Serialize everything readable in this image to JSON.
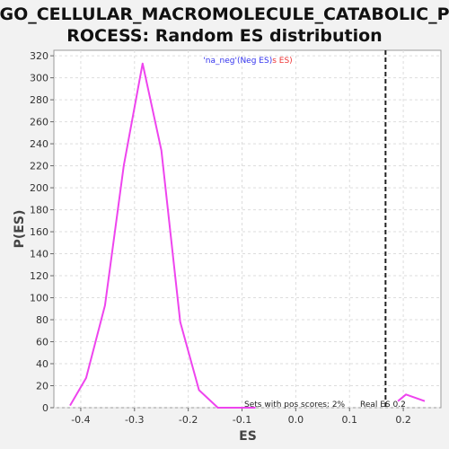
{
  "chart_data": {
    "type": "line",
    "title_lines": [
      "GO_CELLULAR_MACROMOLECULE_CATABOLIC_P",
      "ROCESS: Random ES distribution"
    ],
    "xlabel": "ES",
    "ylabel": "P(ES)",
    "xlim": [
      -0.45,
      0.27
    ],
    "ylim": [
      0,
      325
    ],
    "xticks": [
      -0.4,
      -0.3,
      -0.2,
      -0.1,
      0.0,
      0.1,
      0.2
    ],
    "xtick_labels": [
      "-0.4",
      "-0.3",
      "-0.2",
      "-0.1",
      "0.0",
      "0.1",
      "0.2"
    ],
    "yticks": [
      0,
      20,
      40,
      60,
      80,
      100,
      120,
      140,
      160,
      180,
      200,
      220,
      240,
      260,
      280,
      300,
      320
    ],
    "ytick_labels": [
      "0",
      "20",
      "40",
      "60",
      "80",
      "100",
      "120",
      "140",
      "160",
      "180",
      "200",
      "220",
      "240",
      "260",
      "280",
      "300",
      "320"
    ],
    "grid": true,
    "legend": {
      "placement": "top-center",
      "prefix": "'na_neg'",
      "neg_label": "(Neg ES)",
      "pos_label": "s ES)"
    },
    "series": [
      {
        "color": "#ee44ee",
        "segments": [
          {
            "x": [
              -0.42,
              -0.39,
              -0.355,
              -0.32,
              -0.285,
              -0.25,
              -0.215,
              -0.18,
              -0.145,
              -0.11,
              -0.075
            ],
            "y": [
              2,
              27,
              93,
              220,
              313,
              234,
              78,
              16,
              0,
              0,
              0
            ]
          },
          {
            "x": [
              0.19,
              0.205,
              0.24
            ],
            "y": [
              6,
              12,
              6
            ]
          }
        ]
      }
    ],
    "real_es": 0.167,
    "annotations": {
      "pos_scores_text": "Sets with pos scores: 2%",
      "real_es_text": "Real ES 0.2"
    },
    "colors": {
      "neg": "#3333ee",
      "pos": "#ee3333",
      "line": "#ee44ee",
      "real_es_line": "#222222"
    }
  }
}
